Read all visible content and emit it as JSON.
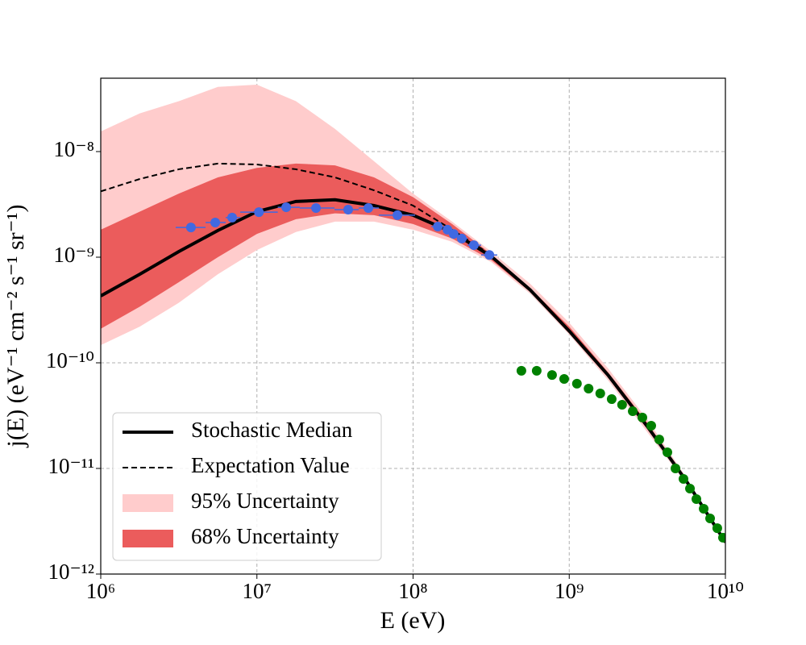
{
  "chart_data": {
    "type": "line",
    "x_label": "E (eV)",
    "y_label": "j(E) (eV⁻¹ cm⁻² s⁻¹ sr⁻¹)",
    "xlog": true,
    "ylog": true,
    "grid": true,
    "legend": "lower left",
    "xlim": [
      1000000,
      10000000000
    ],
    "ylim": [
      1e-12,
      4.95e-08
    ],
    "xticks": [
      {
        "value": 1000000,
        "label": "10⁶"
      },
      {
        "value": 10000000,
        "label": "10⁷"
      },
      {
        "value": 100000000,
        "label": "10⁸"
      },
      {
        "value": 1000000000,
        "label": "10⁹"
      },
      {
        "value": 10000000000,
        "label": "10¹⁰"
      }
    ],
    "yticks": [
      {
        "value": 1e-12,
        "label": "10⁻¹²"
      },
      {
        "value": 1e-11,
        "label": "10⁻¹¹"
      },
      {
        "value": 1e-10,
        "label": "10⁻¹⁰"
      },
      {
        "value": 1e-09,
        "label": "10⁻⁹"
      },
      {
        "value": 1e-08,
        "label": "10⁻⁸"
      }
    ],
    "x": [
      1000000,
      1778279,
      3162278,
      5623413,
      10000000,
      17782794,
      31622777,
      56234133,
      100000000,
      177827941,
      316227766,
      562341325,
      1000000000,
      1778279410,
      3162277660,
      5623413252,
      10000000000
    ],
    "bands": [
      {
        "name": "95% Uncertainty",
        "color": "#ffcccc",
        "lower": [
          1.47e-10,
          2.2e-10,
          3.7e-10,
          6.9e-10,
          1.17e-09,
          1.73e-09,
          2.17e-09,
          2.17e-09,
          1.82e-09,
          1.4e-09,
          9e-10,
          4.5e-10,
          1.85e-10,
          6.8e-11,
          2.2e-11,
          7.2e-12,
          1.9e-12
        ],
        "upper": [
          1.55e-08,
          2.3e-08,
          3e-08,
          4.1e-08,
          4.3e-08,
          3e-08,
          1.64e-08,
          8.1e-09,
          4e-09,
          2.17e-09,
          1.13e-09,
          5.6e-10,
          2.4e-10,
          8.8e-11,
          2.9e-11,
          8.2e-12,
          2e-12
        ]
      },
      {
        "name": "68% Uncertainty",
        "color": "#eb5c5c",
        "lower": [
          2.1e-10,
          3.4e-10,
          5.8e-10,
          1e-09,
          1.66e-09,
          2.29e-09,
          2.6e-09,
          2.5e-09,
          2.06e-09,
          1.5e-09,
          9.4e-10,
          4.7e-10,
          1.9e-10,
          7.2e-11,
          2.35e-11,
          7.4e-12,
          1.95e-12
        ],
        "upper": [
          1.82e-09,
          2.7e-09,
          4e-09,
          5.7e-09,
          7e-09,
          7.7e-09,
          7.4e-09,
          5.7e-09,
          3.7e-09,
          2.06e-09,
          1.07e-09,
          5.1e-10,
          2.2e-10,
          8.1e-11,
          2.7e-11,
          7.8e-12,
          2e-12
        ]
      }
    ],
    "series": [
      {
        "name": "Expectation Value",
        "color": "#000000",
        "style": "dashed",
        "values": [
          4.2e-09,
          5.5e-09,
          6.8e-09,
          7.7e-09,
          7.55e-09,
          6.8e-09,
          5.7e-09,
          4.3e-09,
          3.08e-09,
          1.82e-09,
          1.05e-09,
          null,
          null,
          null,
          null,
          null,
          null
        ]
      },
      {
        "name": "Stochastic Median",
        "color": "#000000",
        "style": "solid",
        "values": [
          4.3e-10,
          6.9e-10,
          1.13e-09,
          1.79e-09,
          2.7e-09,
          3.37e-09,
          3.5e-09,
          3.08e-09,
          2.5e-09,
          1.73e-09,
          1.02e-09,
          4.9e-10,
          2e-10,
          7.6e-11,
          2.5e-11,
          7.6e-12,
          2e-12
        ]
      }
    ],
    "points": [
      {
        "color": "#4169e1",
        "x": [
          3780000,
          5410000,
          6940000,
          10300000,
          15400000,
          23900000,
          38400000,
          51700000,
          79400000,
          144000000,
          166000000,
          182000000,
          205000000,
          245000000,
          308000000
        ],
        "values": [
          1.91e-09,
          2.13e-09,
          2.37e-09,
          2.67e-09,
          2.97e-09,
          2.92e-09,
          2.82e-09,
          2.92e-09,
          2.5e-09,
          1.95e-09,
          1.82e-09,
          1.66e-09,
          1.5e-09,
          1.3e-09,
          1.05e-09
        ],
        "x_low": [
          3020000,
          4690000,
          6310000,
          7820000,
          13600000,
          18800000,
          31400000,
          44900000,
          60400000,
          131000000,
          156000000,
          174000000,
          194000000,
          223000000,
          273000000
        ],
        "x_high": [
          4690000,
          6310000,
          7820000,
          13600000,
          18800000,
          31400000,
          44900000,
          60400000,
          103000000,
          156000000,
          174000000,
          194000000,
          223000000,
          273000000,
          346000000
        ]
      },
      {
        "color": "#008000",
        "x": [
          494000000,
          619000000,
          776000000,
          928000000,
          1120000000,
          1330000000,
          1580000000,
          1870000000,
          2180000000,
          2550000000,
          2940000000,
          3350000000,
          3770000000,
          4250000000,
          4790000000,
          5390000000,
          5930000000,
          6520000000,
          7260000000,
          7980000000,
          8870000000,
          9650000000
        ],
        "values": [
          8.4e-11,
          8.4e-11,
          7.67e-11,
          7.03e-11,
          6.34e-11,
          5.7e-11,
          5.13e-11,
          4.53e-11,
          4.01e-11,
          3.48e-11,
          3.03e-11,
          2.54e-11,
          1.88e-11,
          1.42e-11,
          1e-11,
          7.96e-12,
          6.44e-12,
          5.13e-12,
          4.15e-12,
          3.36e-12,
          2.72e-12,
          2.21e-12
        ]
      }
    ]
  }
}
